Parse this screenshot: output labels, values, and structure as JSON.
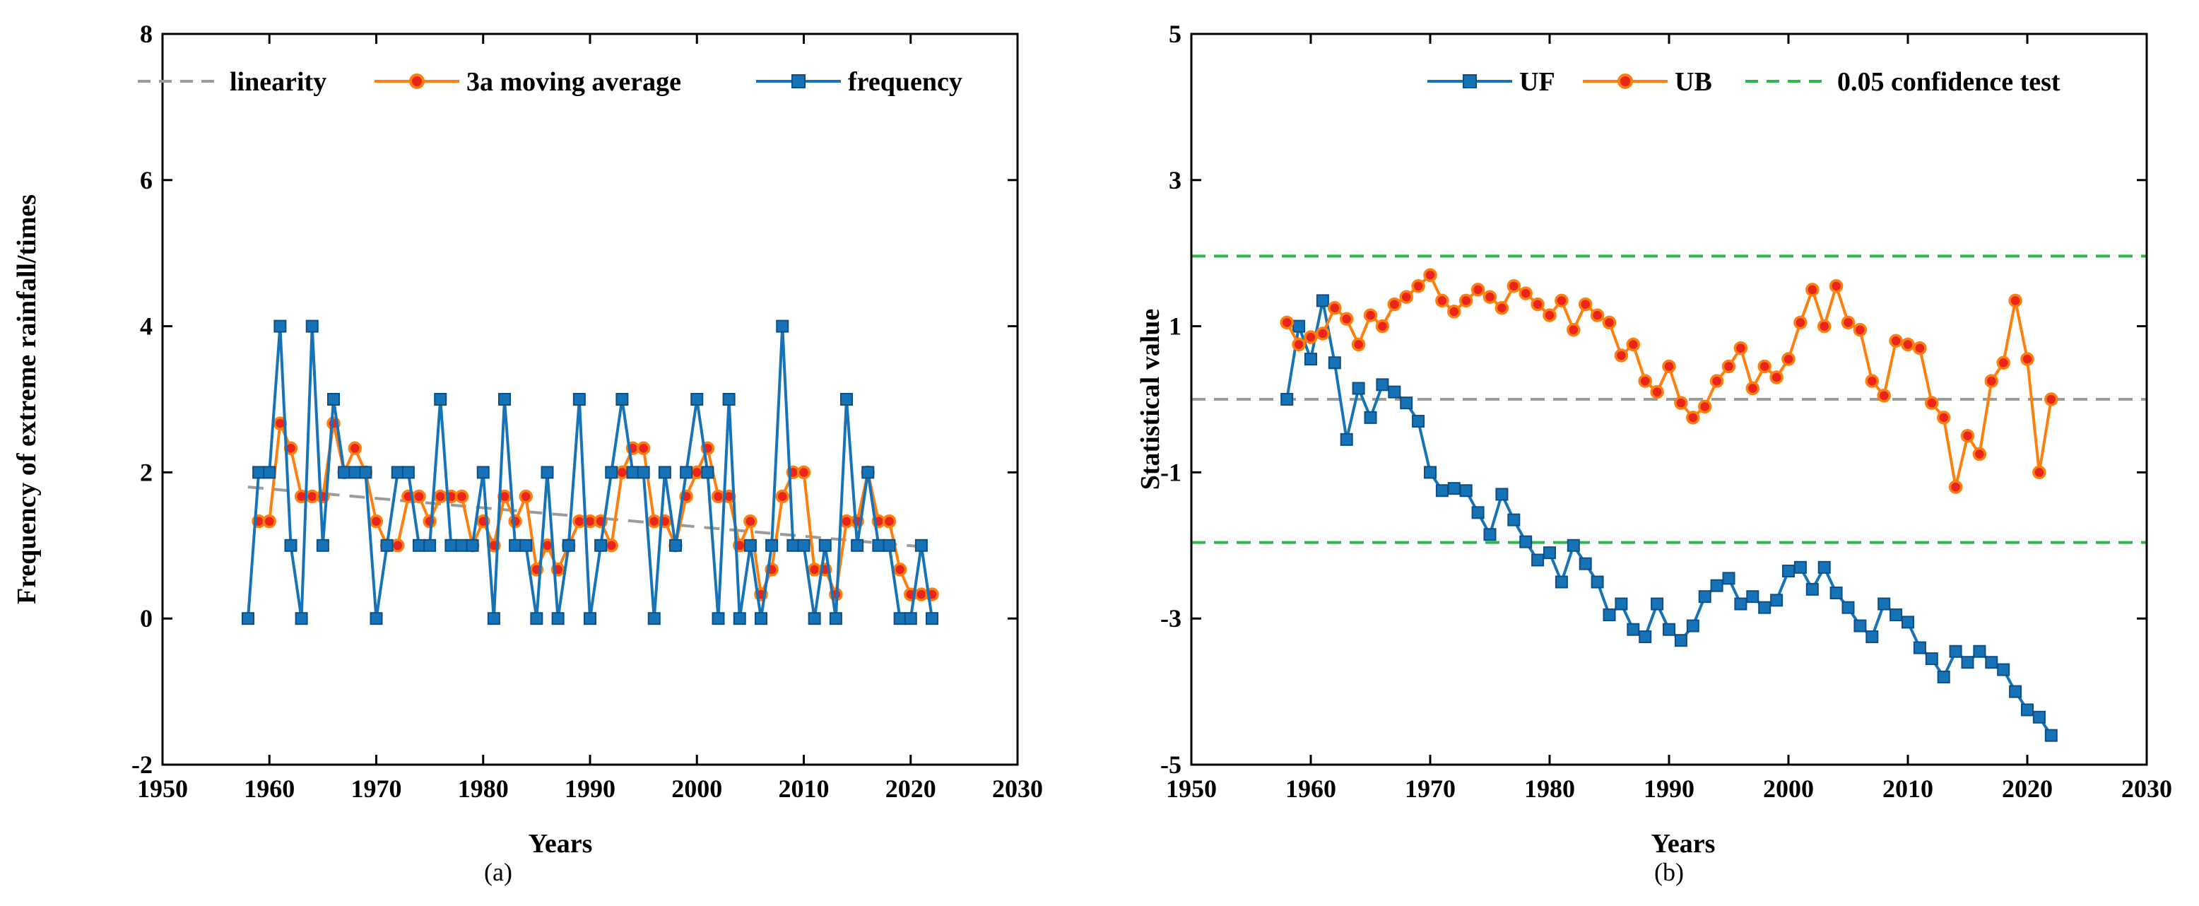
{
  "chart_data": [
    {
      "id": "a",
      "type": "line",
      "caption": "(a)",
      "xlabel": "Years",
      "ylabel": "Frequency of extreme rainfall/times",
      "xlim": [
        1950,
        2030
      ],
      "ylim": [
        -2,
        8
      ],
      "xticks": [
        1950,
        1960,
        1970,
        1980,
        1990,
        2000,
        2010,
        2020,
        2030
      ],
      "yticks": [
        -2,
        0,
        2,
        4,
        6,
        8
      ],
      "grid": false,
      "legend": {
        "placement": "top",
        "entries": [
          "linearity",
          "3a moving average",
          "frequency"
        ]
      },
      "colors": {
        "linearity": "#9b9b9b",
        "moving": "#ff7f0e",
        "moving_marker": "#e8241b",
        "frequency": "#1673b8"
      },
      "series": [
        {
          "name": "linearity",
          "style": "dashed",
          "x": [
            1958,
            2022
          ],
          "y": [
            1.8,
            0.97
          ]
        },
        {
          "name": "3a moving average",
          "style": "line-circle",
          "x": [
            1959,
            1960,
            1961,
            1962,
            1963,
            1964,
            1965,
            1966,
            1967,
            1968,
            1969,
            1970,
            1971,
            1972,
            1973,
            1974,
            1975,
            1976,
            1977,
            1978,
            1979,
            1980,
            1981,
            1982,
            1983,
            1984,
            1985,
            1986,
            1987,
            1988,
            1989,
            1990,
            1991,
            1992,
            1993,
            1994,
            1995,
            1996,
            1997,
            1998,
            1999,
            2000,
            2001,
            2002,
            2003,
            2004,
            2005,
            2006,
            2007,
            2008,
            2009,
            2010,
            2011,
            2012,
            2013,
            2014,
            2015,
            2016,
            2017,
            2018,
            2019,
            2020,
            2021,
            2022
          ],
          "y": [
            1.33,
            1.33,
            2.67,
            2.33,
            1.67,
            1.67,
            1.67,
            2.67,
            2.0,
            2.33,
            2.0,
            1.33,
            1.0,
            1.0,
            1.67,
            1.67,
            1.33,
            1.67,
            1.67,
            1.67,
            1.0,
            1.33,
            1.0,
            1.67,
            1.33,
            1.67,
            0.67,
            1.0,
            0.67,
            1.0,
            1.33,
            1.33,
            1.33,
            1.0,
            2.0,
            2.33,
            2.33,
            1.33,
            1.33,
            1.0,
            1.67,
            2.0,
            2.33,
            1.67,
            1.67,
            1.0,
            1.33,
            0.33,
            0.67,
            1.67,
            2.0,
            2.0,
            0.67,
            0.67,
            0.33,
            1.33,
            1.33,
            2.0,
            1.33,
            1.33,
            0.67,
            0.33,
            0.33,
            0.33
          ]
        },
        {
          "name": "frequency",
          "style": "line-square",
          "x": [
            1958,
            1959,
            1960,
            1961,
            1962,
            1963,
            1964,
            1965,
            1966,
            1967,
            1968,
            1969,
            1970,
            1971,
            1972,
            1973,
            1974,
            1975,
            1976,
            1977,
            1978,
            1979,
            1980,
            1981,
            1982,
            1983,
            1984,
            1985,
            1986,
            1987,
            1988,
            1989,
            1990,
            1991,
            1992,
            1993,
            1994,
            1995,
            1996,
            1997,
            1998,
            1999,
            2000,
            2001,
            2002,
            2003,
            2004,
            2005,
            2006,
            2007,
            2008,
            2009,
            2010,
            2011,
            2012,
            2013,
            2014,
            2015,
            2016,
            2017,
            2018,
            2019,
            2020,
            2021,
            2022
          ],
          "y": [
            0,
            2,
            2,
            4,
            1,
            0,
            4,
            1,
            3,
            2,
            2,
            2,
            0,
            1,
            2,
            2,
            1,
            1,
            3,
            1,
            1,
            1,
            2,
            0,
            3,
            1,
            1,
            0,
            2,
            0,
            1,
            3,
            0,
            1,
            2,
            3,
            2,
            2,
            0,
            2,
            1,
            2,
            3,
            2,
            0,
            3,
            0,
            1,
            0,
            1,
            4,
            1,
            1,
            0,
            1,
            0,
            3,
            1,
            2,
            1,
            1,
            0,
            0,
            1,
            0
          ]
        }
      ]
    },
    {
      "id": "b",
      "type": "line",
      "caption": "(b)",
      "xlabel": "Years",
      "ylabel": "Statistical value",
      "xlim": [
        1950,
        2030
      ],
      "ylim": [
        -5,
        5
      ],
      "xticks": [
        1950,
        1960,
        1970,
        1980,
        1990,
        2000,
        2010,
        2020,
        2030
      ],
      "yticks": [
        -5,
        -3,
        -1,
        1,
        3,
        5
      ],
      "grid": false,
      "legend": {
        "placement": "top-right",
        "entries": [
          "UF",
          "UB",
          "0.05 confidence test"
        ]
      },
      "colors": {
        "UF": "#1673b8",
        "UB": "#ff7f0e",
        "UB_marker": "#e8241b",
        "confidence": "#2db84b",
        "zero": "#9b9b9b"
      },
      "confidence_levels": [
        1.96,
        -1.96
      ],
      "zero_line": 0,
      "series": [
        {
          "name": "UF",
          "style": "line-square",
          "x": [
            1958,
            1959,
            1960,
            1961,
            1962,
            1963,
            1964,
            1965,
            1966,
            1967,
            1968,
            1969,
            1970,
            1971,
            1972,
            1973,
            1974,
            1975,
            1976,
            1977,
            1978,
            1979,
            1980,
            1981,
            1982,
            1983,
            1984,
            1985,
            1986,
            1987,
            1988,
            1989,
            1990,
            1991,
            1992,
            1993,
            1994,
            1995,
            1996,
            1997,
            1998,
            1999,
            2000,
            2001,
            2002,
            2003,
            2004,
            2005,
            2006,
            2007,
            2008,
            2009,
            2010,
            2011,
            2012,
            2013,
            2014,
            2015,
            2016,
            2017,
            2018,
            2019,
            2020,
            2021,
            2022
          ],
          "y": [
            0.0,
            1.0,
            0.55,
            1.35,
            0.5,
            -0.55,
            0.15,
            -0.25,
            0.2,
            0.1,
            -0.05,
            -0.3,
            -1.0,
            -1.25,
            -1.22,
            -1.25,
            -1.55,
            -1.85,
            -1.3,
            -1.65,
            -1.95,
            -2.2,
            -2.1,
            -2.5,
            -2.0,
            -2.25,
            -2.5,
            -2.95,
            -2.8,
            -3.15,
            -3.25,
            -2.8,
            -3.15,
            -3.3,
            -3.1,
            -2.7,
            -2.55,
            -2.45,
            -2.8,
            -2.7,
            -2.85,
            -2.75,
            -2.35,
            -2.3,
            -2.6,
            -2.3,
            -2.65,
            -2.85,
            -3.1,
            -3.25,
            -2.8,
            -2.95,
            -3.05,
            -3.4,
            -3.55,
            -3.8,
            -3.45,
            -3.6,
            -3.45,
            -3.6,
            -3.7,
            -4.0,
            -4.25,
            -4.35,
            -4.6
          ]
        },
        {
          "name": "UB",
          "style": "line-circle",
          "x": [
            1958,
            1959,
            1960,
            1961,
            1962,
            1963,
            1964,
            1965,
            1966,
            1967,
            1968,
            1969,
            1970,
            1971,
            1972,
            1973,
            1974,
            1975,
            1976,
            1977,
            1978,
            1979,
            1980,
            1981,
            1982,
            1983,
            1984,
            1985,
            1986,
            1987,
            1988,
            1989,
            1990,
            1991,
            1992,
            1993,
            1994,
            1995,
            1996,
            1997,
            1998,
            1999,
            2000,
            2001,
            2002,
            2003,
            2004,
            2005,
            2006,
            2007,
            2008,
            2009,
            2010,
            2011,
            2012,
            2013,
            2014,
            2015,
            2016,
            2017,
            2018,
            2019,
            2020,
            2021,
            2022
          ],
          "y": [
            1.05,
            0.75,
            0.85,
            0.9,
            1.25,
            1.1,
            0.75,
            1.15,
            1.0,
            1.3,
            1.4,
            1.55,
            1.7,
            1.35,
            1.2,
            1.35,
            1.5,
            1.4,
            1.25,
            1.55,
            1.45,
            1.3,
            1.15,
            1.35,
            0.95,
            1.3,
            1.15,
            1.05,
            0.6,
            0.75,
            0.25,
            0.1,
            0.45,
            -0.05,
            -0.25,
            -0.1,
            0.25,
            0.45,
            0.7,
            0.15,
            0.45,
            0.3,
            0.55,
            1.05,
            1.5,
            1.0,
            1.55,
            1.05,
            0.95,
            0.25,
            0.05,
            0.8,
            0.75,
            0.7,
            -0.05,
            -0.25,
            -1.2,
            -0.5,
            -0.75,
            0.25,
            0.5,
            1.35,
            0.55,
            -1.0,
            0.0
          ]
        }
      ]
    }
  ]
}
